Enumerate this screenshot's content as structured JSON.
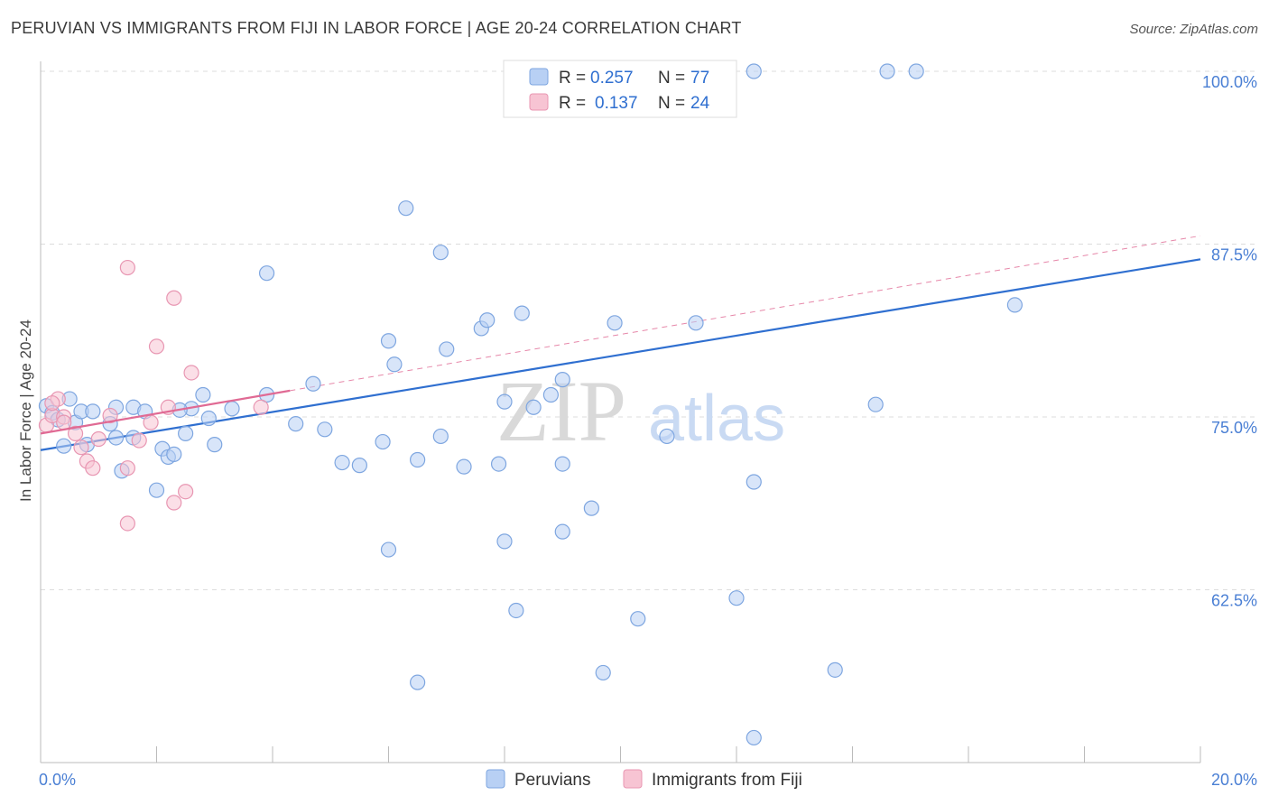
{
  "title": "PERUVIAN VS IMMIGRANTS FROM FIJI IN LABOR FORCE | AGE 20-24 CORRELATION CHART",
  "source": "Source: ZipAtlas.com",
  "watermark": {
    "part1": "ZIP",
    "part2": "atlas"
  },
  "colors": {
    "blue_fill": "#b8d0f4",
    "blue_stroke": "#7ea6e0",
    "blue_line": "#2f6fd0",
    "pink_fill": "#f7c4d3",
    "pink_stroke": "#e896b2",
    "pink_line": "#e06a94",
    "grid": "#dddddd",
    "axis_text": "#4a7fd4"
  },
  "legend_top": {
    "row1": {
      "r_label": "R =",
      "r_value": "0.257",
      "n_label": "N =",
      "n_value": "77"
    },
    "row2": {
      "r_label": "R =",
      "r_value": "0.137",
      "n_label": "N =",
      "n_value": "24"
    }
  },
  "legend_bottom": {
    "series1": "Peruvians",
    "series2": "Immigrants from Fiji"
  },
  "chart_data": {
    "type": "scatter",
    "title": "PERUVIAN VS IMMIGRANTS FROM FIJI IN LABOR FORCE | AGE 20-24 CORRELATION CHART",
    "xlabel": "",
    "ylabel": "In Labor Force | Age 20-24",
    "xlim": [
      0,
      20
    ],
    "ylim": [
      50,
      100
    ],
    "x_tick_labels": [
      "0.0%",
      "20.0%"
    ],
    "y_ticks": [
      62.5,
      75.0,
      87.5,
      100.0
    ],
    "y_tick_labels": [
      "62.5%",
      "75.0%",
      "87.5%",
      "100.0%"
    ],
    "grid": true,
    "legend_position": "top-center",
    "series": [
      {
        "name": "Peruvians",
        "r": 0.257,
        "n": 77,
        "trend": {
          "x0": 0,
          "y0": 72.6,
          "x1": 20,
          "y1": 86.4
        },
        "points": [
          [
            0.1,
            75.8
          ],
          [
            0.2,
            75.3
          ],
          [
            0.3,
            74.8
          ],
          [
            0.4,
            72.9
          ],
          [
            0.5,
            76.3
          ],
          [
            0.6,
            74.6
          ],
          [
            0.7,
            75.4
          ],
          [
            0.8,
            73.0
          ],
          [
            1.2,
            74.5
          ],
          [
            1.3,
            73.5
          ],
          [
            1.3,
            75.7
          ],
          [
            0.9,
            75.4
          ],
          [
            1.4,
            71.1
          ],
          [
            1.6,
            75.7
          ],
          [
            1.6,
            73.5
          ],
          [
            1.8,
            75.4
          ],
          [
            2.0,
            69.7
          ],
          [
            2.1,
            72.7
          ],
          [
            2.2,
            72.1
          ],
          [
            2.3,
            72.3
          ],
          [
            2.5,
            73.8
          ],
          [
            2.6,
            75.6
          ],
          [
            2.8,
            76.6
          ],
          [
            2.9,
            74.9
          ],
          [
            3.0,
            73.0
          ],
          [
            3.9,
            76.6
          ],
          [
            2.4,
            75.5
          ],
          [
            3.3,
            75.6
          ],
          [
            4.4,
            74.5
          ],
          [
            4.7,
            77.4
          ],
          [
            4.9,
            74.1
          ],
          [
            5.2,
            71.7
          ],
          [
            5.5,
            71.5
          ],
          [
            5.9,
            73.2
          ],
          [
            6.1,
            78.8
          ],
          [
            6.5,
            71.9
          ],
          [
            6.9,
            73.6
          ],
          [
            7.3,
            71.4
          ],
          [
            7.9,
            71.6
          ],
          [
            8.0,
            76.1
          ],
          [
            8.5,
            75.7
          ],
          [
            8.8,
            76.6
          ],
          [
            9.0,
            77.7
          ],
          [
            9.0,
            71.6
          ],
          [
            9.5,
            68.4
          ],
          [
            6.0,
            80.5
          ],
          [
            7.0,
            79.9
          ],
          [
            7.6,
            81.4
          ],
          [
            8.3,
            82.5
          ],
          [
            9.9,
            81.8
          ],
          [
            11.3,
            81.8
          ],
          [
            7.7,
            82.0
          ],
          [
            6.3,
            90.1
          ],
          [
            6.9,
            86.9
          ],
          [
            3.9,
            85.4
          ],
          [
            6.0,
            65.4
          ],
          [
            8.0,
            66.0
          ],
          [
            9.0,
            66.7
          ],
          [
            10.8,
            73.6
          ],
          [
            12.3,
            70.3
          ],
          [
            14.4,
            75.9
          ],
          [
            16.8,
            83.1
          ],
          [
            12.0,
            61.9
          ],
          [
            10.3,
            60.4
          ],
          [
            8.2,
            61.0
          ],
          [
            9.7,
            56.5
          ],
          [
            6.5,
            55.8
          ],
          [
            13.7,
            56.7
          ],
          [
            12.3,
            51.8
          ],
          [
            8.6,
            98.9
          ],
          [
            9.4,
            100
          ],
          [
            9.8,
            100
          ],
          [
            10.2,
            100
          ],
          [
            11.5,
            100
          ],
          [
            12.3,
            100
          ],
          [
            14.6,
            100
          ],
          [
            15.1,
            100
          ]
        ]
      },
      {
        "name": "Immigrants from Fiji",
        "r": 0.137,
        "n": 24,
        "trend": {
          "x0": 0,
          "y0": 73.8,
          "x1": 4.3,
          "y1": 76.9,
          "dash_x1": 20,
          "dash_y1": 88.1
        },
        "points": [
          [
            0.1,
            74.4
          ],
          [
            0.2,
            75.1
          ],
          [
            0.3,
            76.3
          ],
          [
            0.4,
            75.0
          ],
          [
            0.4,
            74.6
          ],
          [
            0.6,
            73.8
          ],
          [
            0.7,
            72.8
          ],
          [
            0.8,
            71.8
          ],
          [
            0.9,
            71.3
          ],
          [
            1.0,
            73.4
          ],
          [
            1.2,
            75.1
          ],
          [
            1.5,
            71.3
          ],
          [
            1.7,
            73.3
          ],
          [
            1.9,
            74.6
          ],
          [
            2.2,
            75.7
          ],
          [
            2.5,
            69.6
          ],
          [
            1.5,
            67.3
          ],
          [
            2.3,
            68.8
          ],
          [
            1.5,
            85.8
          ],
          [
            2.3,
            83.6
          ],
          [
            2.0,
            80.1
          ],
          [
            2.6,
            78.2
          ],
          [
            3.8,
            75.7
          ],
          [
            0.2,
            76.0
          ]
        ]
      }
    ]
  }
}
